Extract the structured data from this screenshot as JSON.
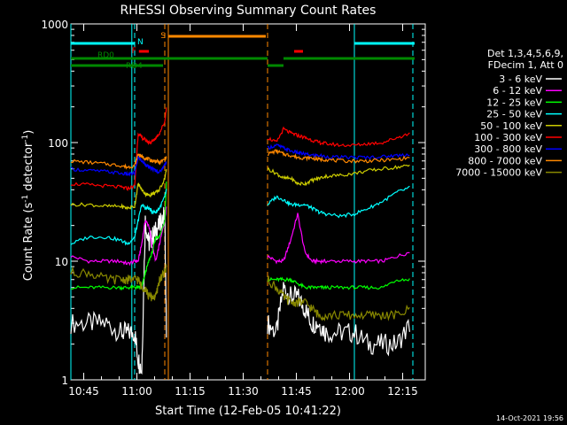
{
  "chart_data": {
    "type": "line",
    "title": "RHESSI Observing Summary Count Rates",
    "xlabel": "Start Time (12-Feb-05 10:41:22)",
    "ylabel_html": "Count Rate (s<tspan baseline-shift='super' font-size='9'>-1</tspan> detector<tspan baseline-shift='super' font-size='9'>-1</tspan>)",
    "ylabel_plain": "Count Rate (s-1 detector-1)",
    "footer": "14-Oct-2021 19:56",
    "y_scale": "log",
    "ylim": [
      1,
      1000
    ],
    "y_ticks": [
      {
        "v": 1,
        "label": "1"
      },
      {
        "v": 10,
        "label": "10"
      },
      {
        "v": 100,
        "label": "100"
      },
      {
        "v": 1000,
        "label": "1000"
      }
    ],
    "xlim_minutes": [
      10.7,
      16.8
    ],
    "x_unit_note": "minutes after 10:41:22 start",
    "x_ticks": [
      {
        "t": 3.63,
        "label": "10:45"
      },
      {
        "t": 18.63,
        "label": "11:00"
      },
      {
        "t": 33.63,
        "label": "11:15"
      },
      {
        "t": 48.63,
        "label": "11:30"
      },
      {
        "t": 63.63,
        "label": "11:45"
      },
      {
        "t": 78.63,
        "label": "12:00"
      },
      {
        "t": 93.63,
        "label": "12:15"
      }
    ],
    "x_range_minutes": [
      0,
      97
    ],
    "legend": {
      "header": [
        "Det 1,3,4,5,6,9,",
        "FDecim 1, Att 0"
      ],
      "placement": "right"
    },
    "series": [
      {
        "name": "3 - 6 keV",
        "color": "#ffffff"
      },
      {
        "name": "6 - 12 keV",
        "color": "#ff00ff"
      },
      {
        "name": "12 - 25 keV",
        "color": "#00ff00"
      },
      {
        "name": "25 - 50 keV",
        "color": "#00ffff"
      },
      {
        "name": "50 - 100 keV",
        "color": "#cccc00"
      },
      {
        "name": "100 - 300 keV",
        "color": "#ff0000"
      },
      {
        "name": "300 - 800 keV",
        "color": "#0000ff"
      },
      {
        "name": "800 - 7000 keV",
        "color": "#ff8800"
      },
      {
        "name": "7000 - 15000 keV",
        "color": "#888800"
      }
    ],
    "series_values": {
      "t": [
        0,
        5,
        10,
        14,
        16,
        18,
        19,
        20,
        21,
        22,
        23,
        24,
        25,
        26.5,
        27
      ],
      "t2": [
        55.5,
        58,
        60,
        62,
        64,
        66,
        68,
        70,
        72,
        76,
        80,
        84,
        88,
        92,
        96
      ],
      "3 - 6 keV": {
        "a": [
          3,
          3,
          3,
          2.5,
          2.5,
          2.5,
          1.5,
          1.2,
          22,
          14,
          16,
          18,
          20,
          25,
          2
        ],
        "b": [
          3,
          2.5,
          6,
          5,
          5,
          4,
          3,
          3,
          2.5,
          2.5,
          2.5,
          2,
          2,
          2,
          3
        ]
      },
      "6 - 12 keV": {
        "a": [
          11,
          10,
          10,
          10,
          9.5,
          10,
          10,
          14,
          22,
          20,
          13,
          10,
          14,
          22,
          30
        ],
        "b": [
          11,
          10,
          10,
          15,
          25,
          12,
          10,
          10,
          10,
          10,
          10,
          10,
          10,
          11,
          12
        ]
      },
      "12 - 25 keV": {
        "a": [
          6,
          6,
          6,
          6,
          6,
          6,
          6,
          6,
          8,
          10,
          12,
          16,
          16,
          22,
          50
        ],
        "b": [
          7,
          7,
          7,
          7,
          6.5,
          6,
          6,
          6,
          6,
          6,
          6,
          6,
          6,
          7,
          7
        ]
      },
      "25 - 50 keV": {
        "a": [
          14,
          16,
          16,
          15,
          14,
          16,
          22,
          30,
          28,
          28,
          26,
          26,
          28,
          35,
          40
        ],
        "b": [
          30,
          35,
          33,
          30,
          30,
          30,
          28,
          26,
          25,
          24,
          25,
          28,
          32,
          38,
          42
        ]
      },
      "50 - 100 keV": {
        "a": [
          30,
          30,
          29,
          29,
          28,
          29,
          45,
          40,
          37,
          36,
          37,
          38,
          40,
          50,
          60
        ],
        "b": [
          60,
          55,
          50,
          50,
          45,
          45,
          48,
          50,
          52,
          53,
          55,
          58,
          60,
          62,
          64
        ]
      },
      "100 - 300 keV": {
        "a": [
          45,
          44,
          43,
          42,
          41,
          43,
          120,
          110,
          105,
          100,
          102,
          110,
          120,
          150,
          200
        ],
        "b": [
          110,
          100,
          130,
          120,
          115,
          110,
          105,
          100,
          98,
          95,
          95,
          98,
          100,
          110,
          120
        ]
      },
      "300 - 800 keV": {
        "a": [
          60,
          58,
          57,
          55,
          54,
          55,
          75,
          70,
          66,
          62,
          60,
          58,
          56,
          65,
          70
        ],
        "b": [
          90,
          95,
          90,
          85,
          82,
          80,
          78,
          78,
          76,
          75,
          75,
          75,
          76,
          78,
          80
        ]
      },
      "800 - 7000 keV": {
        "a": [
          70,
          68,
          66,
          64,
          62,
          64,
          80,
          76,
          74,
          72,
          70,
          70,
          68,
          72,
          75
        ],
        "b": [
          80,
          85,
          80,
          78,
          75,
          74,
          74,
          72,
          72,
          70,
          70,
          70,
          71,
          72,
          75
        ]
      },
      "7000 - 15000 keV": {
        "a": [
          8,
          8,
          7,
          7,
          7,
          7,
          7,
          6,
          6,
          5,
          5,
          5,
          7,
          8,
          9
        ],
        "b": [
          7,
          6,
          5,
          4.5,
          4.5,
          4.5,
          4,
          3.5,
          3.5,
          3.5,
          3.5,
          3.5,
          3.5,
          3.5,
          4
        ]
      }
    },
    "bars": [
      {
        "label": "N",
        "color": "#00ffff",
        "level": "high",
        "t0": 0,
        "t1": 18.0
      },
      {
        "label": "N",
        "color": "#00ffff",
        "level": "high",
        "t0": 80,
        "t1": 97
      },
      {
        "label": "S",
        "color": "#ff8800",
        "level": "top",
        "t0": 27.5,
        "t1": 55
      },
      {
        "label": "F",
        "color": "#ff0000",
        "level": "mid",
        "t0": 19.2,
        "t1": 22
      },
      {
        "label": "",
        "color": "#ff0000",
        "level": "mid",
        "t0": 63,
        "t1": 65.5
      },
      {
        "label": "RD0",
        "color": "#008800",
        "level": "low1",
        "t0": 0,
        "t1": 55.5
      },
      {
        "label": "RD4",
        "color": "#008800",
        "level": "low2",
        "t0": 0,
        "t1": 26
      },
      {
        "label": "",
        "color": "#008800",
        "level": "low2",
        "t0": 55.5,
        "t1": 60
      },
      {
        "label": "",
        "color": "#008800",
        "level": "low1",
        "t0": 60,
        "t1": 97
      }
    ],
    "vlines": [
      {
        "t": 0,
        "color": "#00ffff",
        "dash": false
      },
      {
        "t": 17.2,
        "color": "#00ffff",
        "dash": false
      },
      {
        "t": 18.0,
        "color": "#00ffff",
        "dash": true
      },
      {
        "t": 26.5,
        "color": "#ff8800",
        "dash": true
      },
      {
        "t": 27.5,
        "color": "#ff8800",
        "dash": false
      },
      {
        "t": 55.5,
        "color": "#ff8800",
        "dash": true
      },
      {
        "t": 80,
        "color": "#00ffff",
        "dash": false
      },
      {
        "t": 96.5,
        "color": "#00ffff",
        "dash": true
      }
    ]
  }
}
